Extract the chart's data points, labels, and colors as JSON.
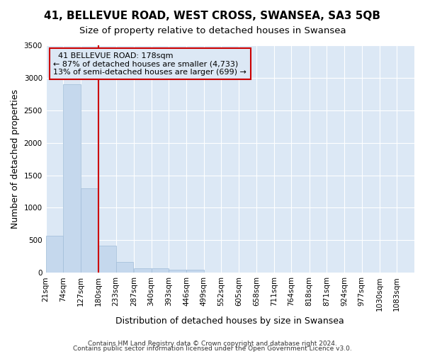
{
  "title": "41, BELLEVUE ROAD, WEST CROSS, SWANSEA, SA3 5QB",
  "subtitle": "Size of property relative to detached houses in Swansea",
  "xlabel": "Distribution of detached houses by size in Swansea",
  "ylabel": "Number of detached properties",
  "footnote1": "Contains HM Land Registry data © Crown copyright and database right 2024.",
  "footnote2": "Contains public sector information licensed under the Open Government Licence v3.0.",
  "annotation_line1": "41 BELLEVUE ROAD: 178sqm",
  "annotation_line2": "← 87% of detached houses are smaller (4,733)",
  "annotation_line3": "13% of semi-detached houses are larger (699) →",
  "bar_color": "#c5d8ed",
  "bar_edge_color": "#a0bcd8",
  "vline_color": "#cc0000",
  "vline_x_bin": 3,
  "categories": [
    "21sqm",
    "74sqm",
    "127sqm",
    "180sqm",
    "233sqm",
    "287sqm",
    "340sqm",
    "393sqm",
    "446sqm",
    "499sqm",
    "552sqm",
    "605sqm",
    "658sqm",
    "711sqm",
    "764sqm",
    "818sqm",
    "871sqm",
    "924sqm",
    "977sqm",
    "1030sqm",
    "1083sqm"
  ],
  "bin_edges": [
    21,
    74,
    127,
    180,
    233,
    287,
    340,
    393,
    446,
    499,
    552,
    605,
    658,
    711,
    764,
    818,
    871,
    924,
    977,
    1030,
    1083
  ],
  "values": [
    570,
    2900,
    1300,
    420,
    160,
    70,
    70,
    50,
    50,
    0,
    0,
    0,
    0,
    0,
    0,
    0,
    0,
    0,
    0,
    0
  ],
  "ylim": [
    0,
    3500
  ],
  "yticks": [
    0,
    500,
    1000,
    1500,
    2000,
    2500,
    3000,
    3500
  ],
  "background_color": "#ffffff",
  "plot_bg_color": "#dce8f5",
  "grid_color": "#ffffff",
  "title_fontsize": 11,
  "subtitle_fontsize": 9.5,
  "axis_label_fontsize": 9,
  "tick_fontsize": 7.5,
  "footnote_fontsize": 6.5
}
